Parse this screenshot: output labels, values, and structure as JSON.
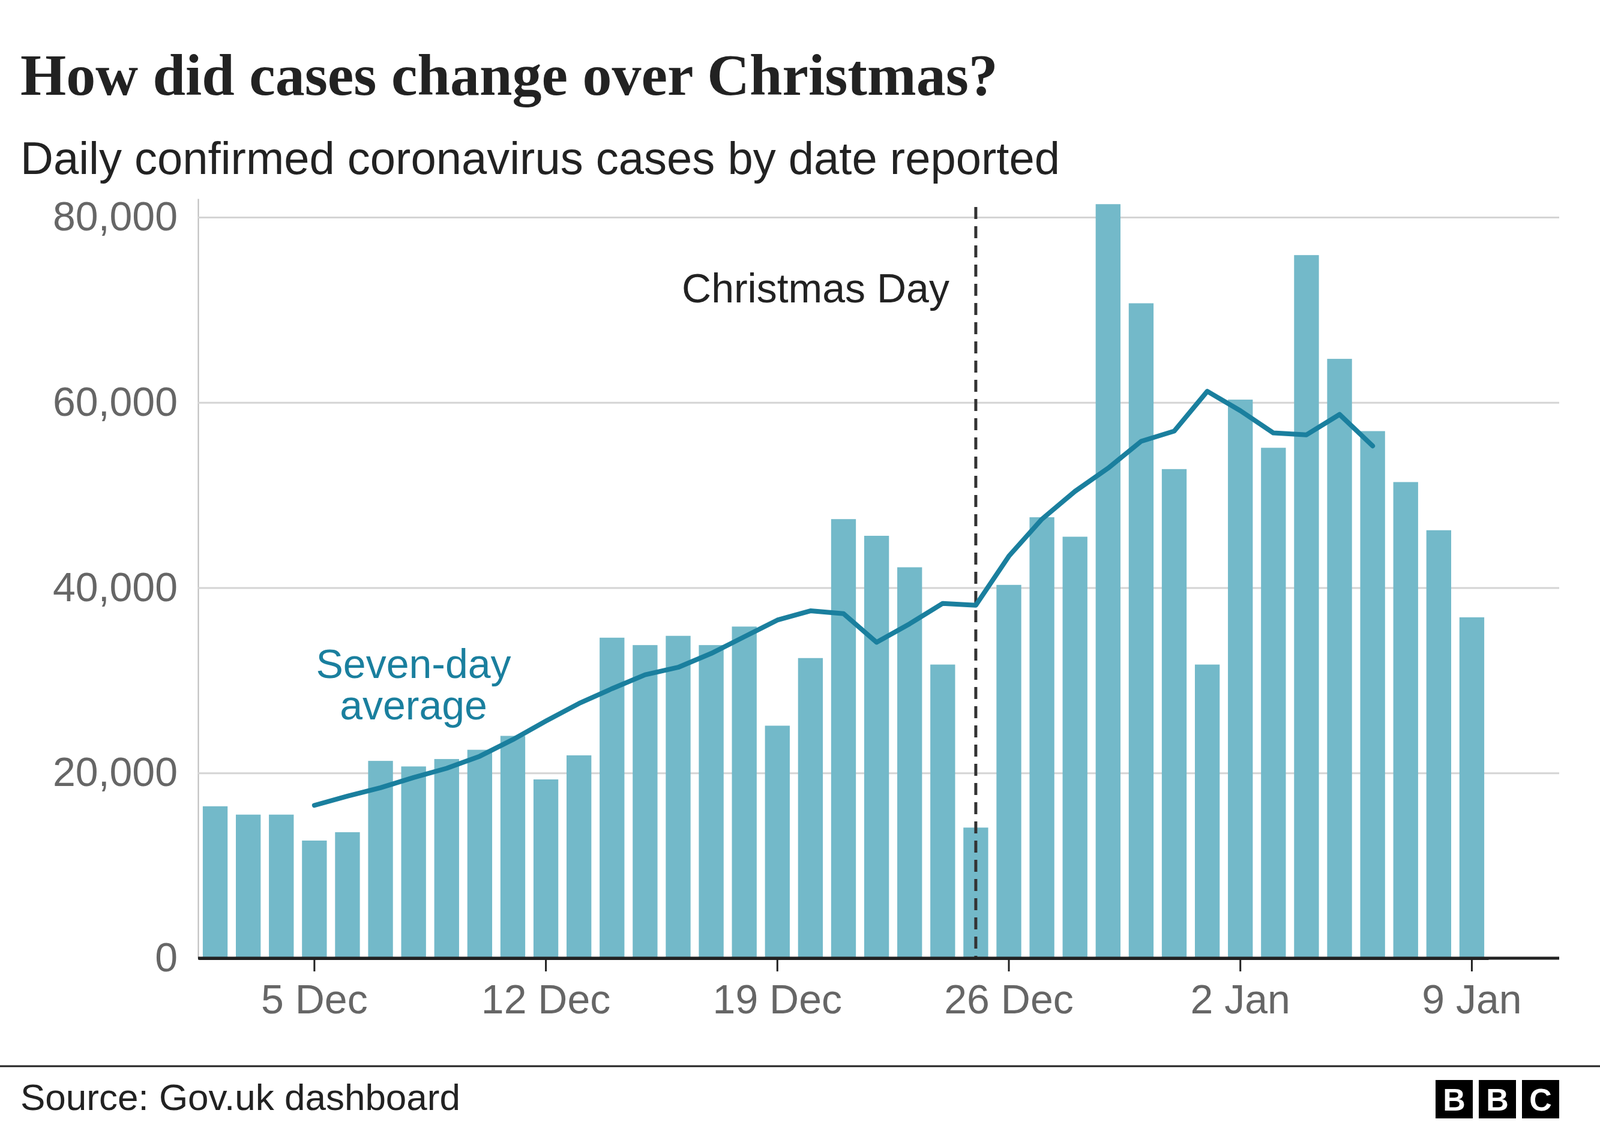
{
  "chart_data": {
    "type": "bar",
    "title": "How did cases change over Christmas?",
    "subtitle": "Daily confirmed coronavirus cases by date reported",
    "source": "Source: Gov.uk dashboard",
    "logo": "BBC",
    "categories": [
      null,
      null,
      null,
      "5 Dec",
      null,
      null,
      null,
      null,
      null,
      null,
      "12 Dec",
      null,
      null,
      null,
      null,
      null,
      null,
      "19 Dec",
      null,
      null,
      null,
      null,
      null,
      null,
      "26 Dec",
      null,
      null,
      null,
      null,
      null,
      null,
      "2 Jan",
      null,
      null,
      null,
      null,
      null,
      null,
      "9 Jan"
    ],
    "series": [
      {
        "type": "bar",
        "color": "#73b9c9",
        "values": [
          16400,
          15500,
          15500,
          12700,
          13600,
          21300,
          20700,
          21500,
          22500,
          24000,
          19300,
          21900,
          34600,
          33800,
          34800,
          33800,
          35800,
          25100,
          32400,
          47400,
          45600,
          42200,
          31700,
          14100,
          40300,
          47600,
          45500,
          81400,
          70700,
          52800,
          31700,
          60300,
          55100,
          75900,
          64700,
          56900,
          51400,
          46200,
          36800
        ]
      },
      {
        "name": "Seven-day average",
        "type": "line",
        "color": "#1a7f9e",
        "values": [
          null,
          null,
          null,
          16500,
          17500,
          18400,
          19500,
          20500,
          21800,
          23600,
          25600,
          27500,
          29100,
          30600,
          31400,
          32900,
          34700,
          36500,
          37500,
          37200,
          34100,
          36100,
          38300,
          38100,
          43400,
          47400,
          50400,
          52900,
          55800,
          56900,
          61200,
          59100,
          56700,
          56500,
          58700,
          55300,
          null,
          null,
          null
        ]
      }
    ],
    "annotations": [
      {
        "text": "Christmas Day",
        "category_index": 23
      }
    ],
    "ylim": [
      0,
      82000
    ],
    "yticks": [
      0,
      {
        "value": 20000,
        "label": "20,000"
      },
      {
        "value": 40000,
        "label": "40,000"
      },
      {
        "value": 60000,
        "label": "60,000"
      },
      {
        "value": 80000,
        "label": "80,000"
      }
    ],
    "grid": true
  }
}
